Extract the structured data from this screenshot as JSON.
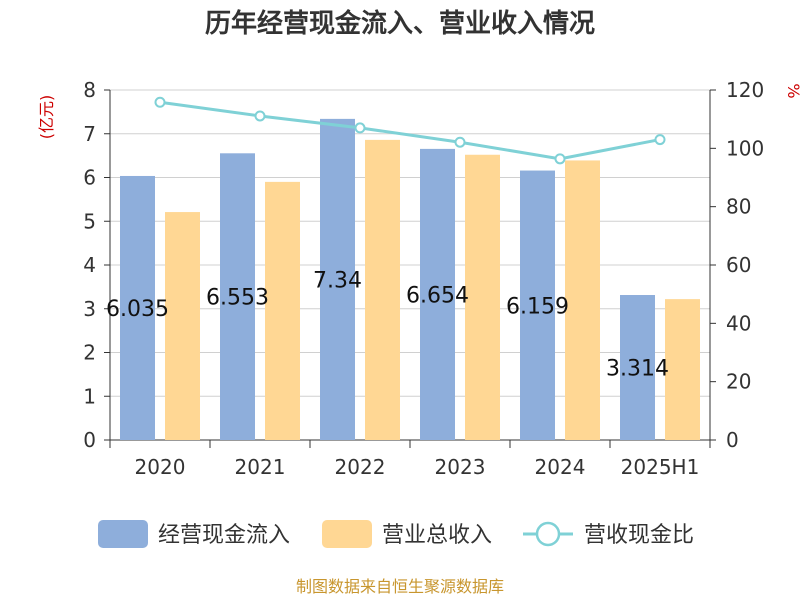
{
  "chart_data": {
    "type": "bar",
    "title": "历年经营现金流入、营业收入情况",
    "left_axis_unit": "(亿元)",
    "right_axis_unit": "%",
    "categories": [
      "2020",
      "2021",
      "2022",
      "2023",
      "2024",
      "2025H1"
    ],
    "left_ylim": [
      0,
      8
    ],
    "left_ticks": [
      "0",
      "1",
      "2",
      "3",
      "4",
      "5",
      "6",
      "7",
      "8"
    ],
    "right_ylim": [
      0,
      120
    ],
    "right_ticks": [
      "0",
      "20",
      "40",
      "60",
      "80",
      "100",
      "120"
    ],
    "series": [
      {
        "name": "经营现金流入",
        "type": "bar",
        "axis": "left",
        "color": "#8eaedb",
        "values": [
          6.035,
          6.553,
          7.34,
          6.654,
          6.159,
          3.314
        ],
        "labels": [
          "6.035",
          "6.553",
          "7.34",
          "6.654",
          "6.159",
          "3.314"
        ]
      },
      {
        "name": "营业总收入",
        "type": "bar",
        "axis": "left",
        "color": "#ffd794",
        "values": [
          5.21,
          5.9,
          6.86,
          6.52,
          6.39,
          3.22
        ]
      },
      {
        "name": "营收现金比",
        "type": "line",
        "axis": "right",
        "color": "#7fd1d6",
        "values": [
          115.8,
          111.1,
          107.0,
          102.1,
          96.4,
          103.0
        ]
      }
    ],
    "legend_position": "bottom",
    "grid": true
  },
  "footer": {
    "source": "制图数据来自恒生聚源数据库"
  }
}
